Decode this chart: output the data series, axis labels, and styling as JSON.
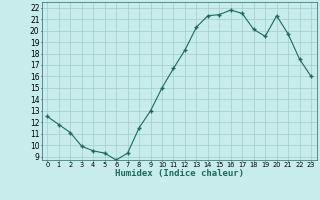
{
  "x": [
    0,
    1,
    2,
    3,
    4,
    5,
    6,
    7,
    8,
    9,
    10,
    11,
    12,
    13,
    14,
    15,
    16,
    17,
    18,
    19,
    20,
    21,
    22,
    23
  ],
  "y": [
    12.5,
    11.8,
    11.1,
    9.9,
    9.5,
    9.3,
    8.7,
    9.3,
    11.5,
    13.0,
    15.0,
    16.7,
    18.3,
    20.3,
    21.3,
    21.4,
    21.8,
    21.5,
    20.1,
    19.5,
    21.3,
    19.7,
    17.5,
    16.0
  ],
  "line_color": "#1a6b5e",
  "marker_color": "#1a6b5e",
  "bg_color": "#c8ecec",
  "grid_color": "#a0cccc",
  "xlabel": "Humidex (Indice chaleur)",
  "ylabel_ticks": [
    9,
    10,
    11,
    12,
    13,
    14,
    15,
    16,
    17,
    18,
    19,
    20,
    21,
    22
  ],
  "ylim": [
    8.7,
    22.5
  ],
  "xlim": [
    -0.5,
    23.5
  ],
  "xtick_labels": [
    "0",
    "1",
    "2",
    "3",
    "4",
    "5",
    "6",
    "7",
    "8",
    "9",
    "10",
    "11",
    "12",
    "13",
    "14",
    "15",
    "16",
    "17",
    "18",
    "19",
    "20",
    "21",
    "22",
    "23"
  ]
}
